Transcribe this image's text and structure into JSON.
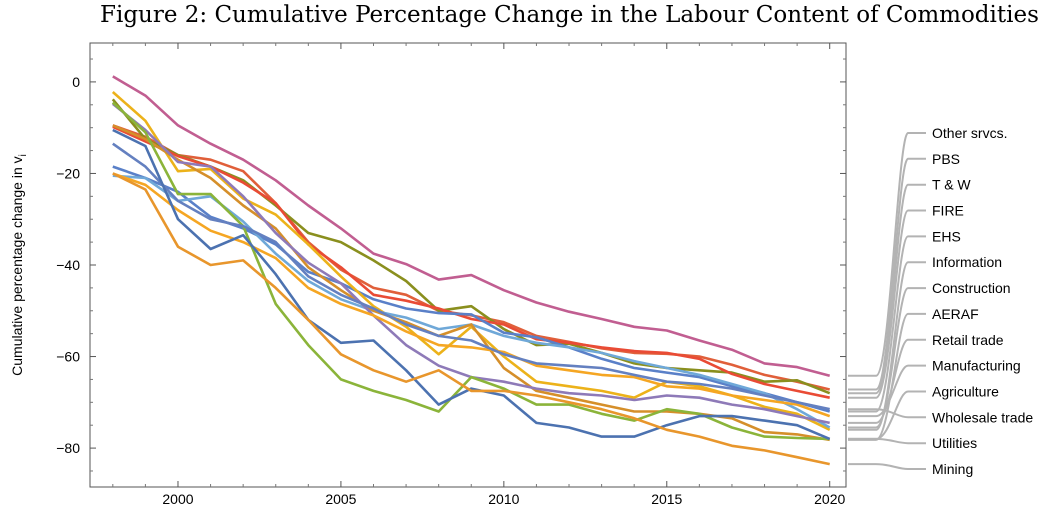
{
  "chart_data": {
    "type": "line",
    "title": "Figure 2: Cumulative Percentage Change in the Labour Content of Commodities",
    "xlabel": "",
    "ylabel": "Cumulative percentage change in v",
    "ylabel_subscript": "i",
    "xlim": [
      1997.3,
      2020.5
    ],
    "ylim": [
      -88.5,
      8.5
    ],
    "xticks": [
      2000,
      2005,
      2010,
      2015,
      2020
    ],
    "yticks": [
      0,
      -20,
      -40,
      -60,
      -80
    ],
    "ytick_labels": [
      "0",
      "−20",
      "−40",
      "−60",
      "−80"
    ],
    "grid": false,
    "legend_placement": "right",
    "x": [
      1998,
      1999,
      2000,
      2001,
      2002,
      2003,
      2004,
      2005,
      2006,
      2007,
      2008,
      2009,
      2010,
      2011,
      2012,
      2013,
      2014,
      2015,
      2016,
      2017,
      2018,
      2019,
      2020
    ],
    "series": [
      {
        "name": "Other srvcs.",
        "color": "#c15e91",
        "values": [
          1.2,
          -3,
          -9.5,
          -13.5,
          -17,
          -21.5,
          -27,
          -32,
          -37.5,
          -39.8,
          -43.2,
          -42.2,
          -45.5,
          -48.2,
          -50.2,
          -51.8,
          -53.5,
          -54.3,
          -56.5,
          -58.5,
          -61.5,
          -62.3,
          -64.2
        ]
      },
      {
        "name": "PBS",
        "color": "#e05f3a",
        "values": [
          -9.5,
          -12,
          -16,
          -17,
          -19.5,
          -26.5,
          -35,
          -41,
          -45,
          -46.5,
          -50,
          -51,
          -52.5,
          -55.5,
          -56.8,
          -58.2,
          -59.2,
          -59.4,
          -60,
          -61.8,
          -64,
          -65.5,
          -67.2
        ]
      },
      {
        "name": "T & W",
        "color": "#8a8f1e",
        "values": [
          -3.8,
          -12.5,
          -16,
          -18.5,
          -21.5,
          -27,
          -33,
          -35,
          -39,
          -43.5,
          -50,
          -49,
          -54,
          -57.5,
          -57.2,
          -59.2,
          -61.5,
          -62.5,
          -63,
          -63.5,
          -65.5,
          -65.2,
          -68
        ]
      },
      {
        "name": "FIRE",
        "color": "#e94b35",
        "values": [
          -9.8,
          -13,
          -16.2,
          -18.5,
          -22,
          -26.5,
          -35.5,
          -40.5,
          -46.5,
          -47.8,
          -49.5,
          -51.8,
          -53,
          -56.2,
          -57,
          -58,
          -58.8,
          -59.2,
          -60.5,
          -63.8,
          -66,
          -67.5,
          -69
        ]
      },
      {
        "name": "EHS",
        "color": "#5a80c8",
        "values": [
          -18.5,
          -21,
          -24,
          -29.5,
          -32,
          -35.5,
          -41.5,
          -44,
          -47.5,
          -49.5,
          -50.5,
          -50.8,
          -54.8,
          -55.8,
          -58,
          -60.5,
          -62.5,
          -63.5,
          -64.5,
          -66.5,
          -68,
          -70,
          -72
        ]
      },
      {
        "name": "Information",
        "color": "#ecb21a",
        "values": [
          -2.2,
          -8.5,
          -19.5,
          -19,
          -25.5,
          -29,
          -35.5,
          -42.5,
          -49,
          -53.5,
          -59.5,
          -53.5,
          -60,
          -65.5,
          -66.5,
          -67.5,
          -69,
          -65.5,
          -66.5,
          -68.5,
          -71,
          -72.5,
          -76
        ]
      },
      {
        "name": "Construction",
        "color": "#6fa8d8",
        "values": [
          -20.5,
          -21,
          -26,
          -25,
          -30.5,
          -37.5,
          -43.5,
          -47.5,
          -50,
          -51.5,
          -54,
          -53,
          -55.5,
          -57,
          -58,
          -59.2,
          -61,
          -62.5,
          -64,
          -66,
          -68,
          -71.5,
          -75.5
        ]
      },
      {
        "name": "AERAF",
        "color": "#d58f2a",
        "values": [
          -9.5,
          -12.5,
          -17,
          -21,
          -27,
          -32,
          -40.5,
          -45.5,
          -50,
          -52.5,
          -55.5,
          -53,
          -62.5,
          -67.5,
          -69,
          -70.5,
          -72,
          -72,
          -72.5,
          -73.5,
          -76.5,
          -77,
          -78.2
        ]
      },
      {
        "name": "Retail trade",
        "color": "#8e7ab8",
        "values": [
          -4.8,
          -10.5,
          -17.5,
          -18.5,
          -25,
          -33,
          -39.5,
          -44,
          -51,
          -57.5,
          -62,
          -64.5,
          -65.5,
          -67,
          -68,
          -68.5,
          -69.5,
          -68.5,
          -69,
          -70.5,
          -71.5,
          -73,
          -74.5
        ]
      },
      {
        "name": "Manufacturing",
        "color": "#f5a623",
        "values": [
          -20,
          -22.5,
          -28,
          -32.5,
          -35,
          -38.5,
          -45,
          -48.5,
          -51,
          -54.5,
          -57.5,
          -58,
          -59,
          -62,
          -63,
          -64,
          -64.5,
          -66.5,
          -67,
          -68.5,
          -69.5,
          -70.5,
          -73
        ]
      },
      {
        "name": "Agriculture",
        "color": "#8bb43a",
        "values": [
          -4.5,
          -11,
          -24.5,
          -24.5,
          -31.5,
          -48.5,
          -57.5,
          -65,
          -67.5,
          -69.5,
          -72,
          -64.5,
          -67,
          -70.5,
          -70.5,
          -72.5,
          -74,
          -71.5,
          -72.5,
          -75.5,
          -77.5,
          -77.8,
          -78
        ]
      },
      {
        "name": "Wholesale trade",
        "color": "#6480c0",
        "values": [
          -13.5,
          -18.5,
          -26,
          -30,
          -31.5,
          -35,
          -42.5,
          -46.5,
          -49.5,
          -53,
          -55.5,
          -56.5,
          -59.5,
          -61.5,
          -62,
          -62.5,
          -64,
          -65.5,
          -66,
          -67,
          -68.5,
          -70,
          -71.5
        ]
      },
      {
        "name": "Utilities",
        "color": "#4c72b0",
        "values": [
          -10.5,
          -14,
          -30,
          -36.5,
          -33.5,
          -42,
          -52,
          -57,
          -56.5,
          -63,
          -70.5,
          -67,
          -68.5,
          -74.5,
          -75.5,
          -77.5,
          -77.5,
          -75,
          -73,
          -73,
          -74,
          -75,
          -78
        ]
      },
      {
        "name": "Mining",
        "color": "#e8962c",
        "values": [
          -20,
          -23.5,
          -36,
          -40,
          -39,
          -45,
          -52,
          -59.5,
          -63,
          -65.5,
          -63,
          -67.5,
          -67.5,
          -68.5,
          -70,
          -71.5,
          -73.5,
          -76,
          -77.5,
          -79.5,
          -80.5,
          -82,
          -83.5
        ]
      }
    ]
  }
}
